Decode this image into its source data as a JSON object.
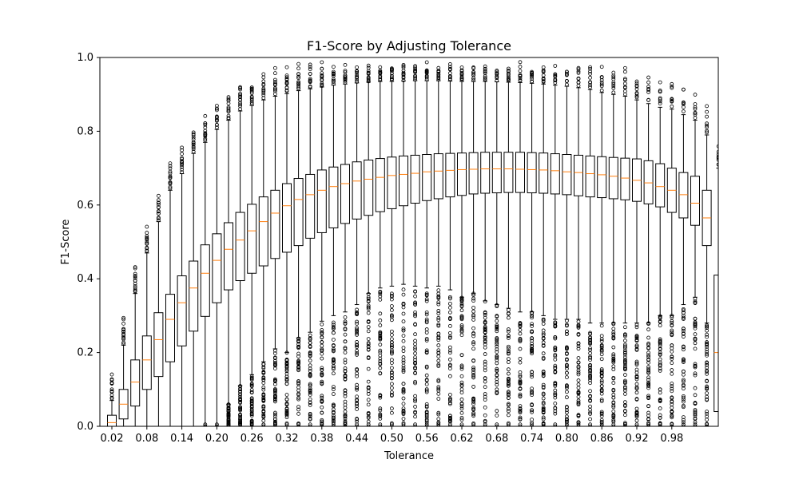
{
  "chart_data": {
    "type": "box",
    "title": "F1-Score by Adjusting Tolerance",
    "xlabel": "Tolerance",
    "ylabel": "F1-Score",
    "ylim": [
      0,
      1
    ],
    "yticks": [
      "0.0",
      "0.2",
      "0.4",
      "0.6",
      "0.8",
      "1.0"
    ],
    "xticks": [
      "0.02",
      "0.08",
      "0.14",
      "0.20",
      "0.26",
      "0.32",
      "0.38",
      "0.44",
      "0.50",
      "0.56",
      "0.62",
      "0.68",
      "0.74",
      "0.80",
      "0.86",
      "0.92",
      "0.98"
    ],
    "x_start": 0.02,
    "x_step": 0.02,
    "medians": [
      0.01,
      0.06,
      0.12,
      0.18,
      0.235,
      0.29,
      0.335,
      0.375,
      0.415,
      0.45,
      0.48,
      0.505,
      0.53,
      0.555,
      0.578,
      0.598,
      0.615,
      0.628,
      0.64,
      0.65,
      0.658,
      0.665,
      0.67,
      0.675,
      0.68,
      0.683,
      0.686,
      0.69,
      0.692,
      0.694,
      0.696,
      0.697,
      0.698,
      0.698,
      0.698,
      0.697,
      0.696,
      0.695,
      0.693,
      0.69,
      0.688,
      0.685,
      0.682,
      0.678,
      0.673,
      0.667,
      0.66,
      0.65,
      0.64,
      0.628,
      0.605,
      0.565,
      0.2
    ],
    "q1": [
      0,
      0.02,
      0.055,
      0.1,
      0.135,
      0.175,
      0.218,
      0.258,
      0.298,
      0.335,
      0.37,
      0.395,
      0.415,
      0.435,
      0.455,
      0.472,
      0.49,
      0.51,
      0.525,
      0.538,
      0.55,
      0.562,
      0.572,
      0.582,
      0.59,
      0.598,
      0.605,
      0.612,
      0.617,
      0.622,
      0.626,
      0.63,
      0.632,
      0.633,
      0.634,
      0.634,
      0.633,
      0.632,
      0.63,
      0.628,
      0.625,
      0.622,
      0.62,
      0.617,
      0.614,
      0.61,
      0.603,
      0.595,
      0.58,
      0.565,
      0.545,
      0.49,
      0.04
    ],
    "q3": [
      0.03,
      0.1,
      0.18,
      0.245,
      0.308,
      0.358,
      0.408,
      0.448,
      0.492,
      0.522,
      0.552,
      0.58,
      0.602,
      0.622,
      0.64,
      0.658,
      0.672,
      0.683,
      0.695,
      0.703,
      0.71,
      0.717,
      0.722,
      0.726,
      0.73,
      0.733,
      0.735,
      0.737,
      0.739,
      0.74,
      0.741,
      0.742,
      0.743,
      0.743,
      0.743,
      0.743,
      0.742,
      0.741,
      0.739,
      0.737,
      0.735,
      0.733,
      0.731,
      0.729,
      0.727,
      0.725,
      0.72,
      0.712,
      0.7,
      0.688,
      0.678,
      0.64,
      0.41
    ],
    "whisker_low": [
      0,
      0,
      0,
      0,
      0,
      0,
      0,
      0,
      0,
      0,
      0.06,
      0.11,
      0.14,
      0.175,
      0.21,
      0.2,
      0.24,
      0.255,
      0.285,
      0.3,
      0.31,
      0.33,
      0.36,
      0.375,
      0.38,
      0.385,
      0.38,
      0.375,
      0.38,
      0.37,
      0.35,
      0.36,
      0.34,
      0.33,
      0.32,
      0.31,
      0.31,
      0.3,
      0.29,
      0.29,
      0.29,
      0.28,
      0.28,
      0.28,
      0.28,
      0.28,
      0.28,
      0.3,
      0.3,
      0.33,
      0.35,
      0.28,
      0
    ],
    "whisker_high": [
      0.07,
      0.22,
      0.36,
      0.47,
      0.555,
      0.64,
      0.685,
      0.74,
      0.77,
      0.805,
      0.83,
      0.855,
      0.87,
      0.885,
      0.895,
      0.902,
      0.91,
      0.915,
      0.92,
      0.925,
      0.928,
      0.931,
      0.933,
      0.935,
      0.935,
      0.936,
      0.937,
      0.937,
      0.937,
      0.936,
      0.935,
      0.935,
      0.935,
      0.934,
      0.933,
      0.932,
      0.93,
      0.928,
      0.925,
      0.922,
      0.918,
      0.913,
      0.905,
      0.9,
      0.895,
      0.885,
      0.875,
      0.865,
      0.86,
      0.845,
      0.83,
      0.79,
      0.7
    ],
    "flier_density": [
      0.02,
      0.02,
      0.05,
      0.1,
      0.2,
      0.3,
      0.45,
      0.55,
      0.65,
      0.7,
      0.75,
      0.8,
      0.82,
      0.85,
      0.85,
      0.85,
      0.85,
      0.86,
      0.86,
      0.86,
      0.86,
      0.86,
      0.86,
      0.86,
      0.86,
      0.86,
      0.86,
      0.86,
      0.86,
      0.86,
      0.86,
      0.86,
      0.86,
      0.86,
      0.86,
      0.86,
      0.86,
      0.86,
      0.86,
      0.86,
      0.86,
      0.86,
      0.86,
      0.86,
      0.86,
      0.86,
      0.86,
      0.86,
      0.86,
      0.86,
      0.86,
      0.86,
      0.0
    ],
    "box_color": "#000000",
    "median_color": "#ff7f0e",
    "grid": false,
    "legend": "none"
  }
}
